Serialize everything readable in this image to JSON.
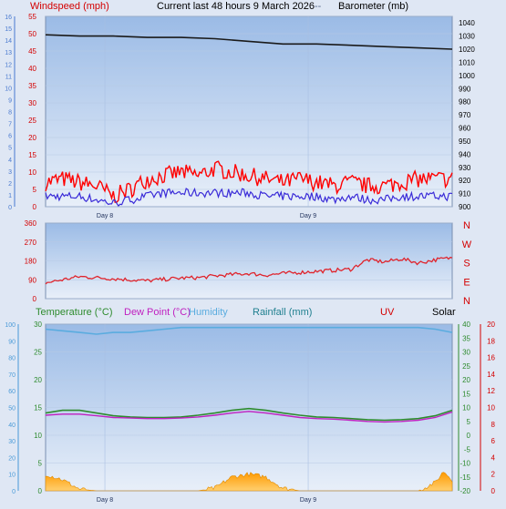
{
  "header": {
    "left_label": "Windspeed (mph)",
    "center_label": "Current last 48 hours 9 March 2026",
    "barometer_label": "Barometer (mb)",
    "left_label_color": "#d40000",
    "barometer_label_color": "#000000"
  },
  "days": [
    "Day 8",
    "Day 9"
  ],
  "panel3_labels": {
    "temperature": "Temperature (°C)",
    "dew_point": "Dew Point (°C)",
    "humidity": "Humidity",
    "rainfall": "Rainfall (mm)",
    "uv": "UV",
    "solar": "Solar"
  },
  "colors": {
    "plot_bg_top": "#9bbbe6",
    "plot_bg_bottom": "#e6eefa",
    "wind_gust": "#ff0000",
    "wind_avg": "#3a2bd8",
    "barometer": "#1a1a1a",
    "direction": "#e0242c",
    "temperature": "#2e8b2e",
    "dew_point": "#c020c0",
    "humidity": "#5aacdf",
    "rainfall": "#1f7f8f",
    "uv": "#e00000",
    "solar": "#f0a000"
  },
  "chart_data": [
    {
      "type": "line",
      "panel": "wind_barometer",
      "x_unit": "hours",
      "x_range": [
        0,
        48
      ],
      "day_ticks": [
        {
          "label": "Day 8",
          "hour": 7
        },
        {
          "label": "Day 9",
          "hour": 31
        }
      ],
      "left_axis": {
        "label": "Windspeed (mph)",
        "range": [
          0,
          55
        ],
        "ticks": [
          0,
          5,
          10,
          15,
          20,
          25,
          30,
          35,
          40,
          45,
          50,
          55
        ]
      },
      "secondary_axis_ticks": [
        0,
        1,
        2,
        3,
        4,
        5,
        6,
        7,
        8,
        9,
        10,
        11,
        12,
        13,
        14,
        15,
        16
      ],
      "right_axis": {
        "label": "Barometer (mb)",
        "range": [
          900,
          1045
        ],
        "ticks": [
          900,
          910,
          920,
          930,
          940,
          950,
          960,
          970,
          980,
          990,
          1000,
          1010,
          1020,
          1030,
          1040
        ]
      },
      "series": [
        {
          "name": "Barometer",
          "axis": "right",
          "x": [
            0,
            4,
            8,
            12,
            16,
            20,
            24,
            28,
            32,
            36,
            40,
            44,
            48
          ],
          "y": [
            1031,
            1030,
            1030,
            1029,
            1029,
            1028,
            1026,
            1024,
            1024,
            1023,
            1022,
            1021,
            1020
          ]
        },
        {
          "axis": "left",
          "role": "gust",
          "x": [
            0,
            2,
            4,
            6,
            8,
            10,
            12,
            14,
            16,
            18,
            20,
            22,
            24,
            26,
            28,
            30,
            32,
            34,
            36,
            38,
            40,
            42,
            44,
            46,
            48
          ],
          "y": [
            7,
            8,
            7,
            6,
            3,
            5,
            8,
            9,
            10,
            9,
            11,
            10,
            9,
            8,
            7,
            8,
            7,
            6,
            7,
            6,
            6,
            7,
            8,
            8,
            8
          ]
        },
        {
          "axis": "left",
          "role": "average",
          "x": [
            0,
            2,
            4,
            6,
            8,
            10,
            12,
            14,
            16,
            18,
            20,
            22,
            24,
            26,
            28,
            30,
            32,
            34,
            36,
            38,
            40,
            42,
            44,
            46,
            48
          ],
          "y": [
            3,
            3,
            3,
            2,
            1,
            2,
            3,
            4,
            4,
            4,
            4,
            4,
            4,
            3,
            3,
            3,
            3,
            2,
            3,
            2,
            2,
            3,
            3,
            3,
            3
          ]
        }
      ]
    },
    {
      "type": "line",
      "panel": "wind_direction",
      "x_range": [
        0,
        48
      ],
      "left_axis": {
        "range": [
          0,
          360
        ],
        "ticks": [
          0,
          90,
          180,
          270,
          360
        ]
      },
      "right_labels": [
        "N",
        "W",
        "S",
        "E",
        "N"
      ],
      "series": [
        {
          "axis": "left",
          "x": [
            0,
            2,
            4,
            6,
            8,
            10,
            12,
            14,
            16,
            18,
            20,
            22,
            24,
            26,
            28,
            30,
            32,
            34,
            36,
            38,
            40,
            42,
            44,
            46,
            48
          ],
          "y": [
            75,
            90,
            105,
            100,
            95,
            90,
            85,
            92,
            98,
            100,
            108,
            115,
            120,
            112,
            120,
            125,
            130,
            135,
            140,
            185,
            175,
            190,
            170,
            185,
            195
          ]
        }
      ]
    },
    {
      "type": "line",
      "panel": "temperature_humidity_rain",
      "x_range": [
        0,
        48
      ],
      "left_axis": {
        "label": "Temperature (°C)",
        "range": [
          0,
          30
        ],
        "ticks": [
          0,
          5,
          10,
          15,
          20,
          25,
          30
        ]
      },
      "humidity_axis": {
        "label": "Humidity",
        "range": [
          0,
          100
        ],
        "ticks": [
          0,
          10,
          20,
          30,
          40,
          50,
          60,
          70,
          80,
          90,
          100
        ]
      },
      "right_axis_1": {
        "range": [
          -20,
          40
        ],
        "ticks": [
          -20,
          -15,
          -10,
          -5,
          0,
          5,
          10,
          15,
          20,
          25,
          30,
          35,
          40
        ]
      },
      "right_axis_2": {
        "label": "UV",
        "range": [
          0,
          20
        ],
        "ticks": [
          0,
          2,
          4,
          6,
          8,
          10,
          12,
          14,
          16,
          18,
          20
        ]
      },
      "series": [
        {
          "name": "Humidity",
          "axis": "humidity",
          "x": [
            0,
            2,
            4,
            6,
            8,
            10,
            12,
            14,
            16,
            18,
            20,
            22,
            24,
            26,
            28,
            30,
            32,
            34,
            36,
            38,
            40,
            42,
            44,
            46,
            48
          ],
          "y": [
            97,
            96,
            95,
            94,
            95,
            95,
            96,
            97,
            98,
            98,
            98,
            98,
            98,
            98,
            98,
            98,
            98,
            98,
            98,
            98,
            98,
            98,
            98,
            97,
            95
          ]
        },
        {
          "name": "Temperature (°C)",
          "axis": "left",
          "x": [
            0,
            2,
            4,
            6,
            8,
            10,
            12,
            14,
            16,
            18,
            20,
            22,
            24,
            26,
            28,
            30,
            32,
            34,
            36,
            38,
            40,
            42,
            44,
            46,
            48
          ],
          "y": [
            14,
            14.5,
            14.5,
            14,
            13.5,
            13.3,
            13.2,
            13.2,
            13.3,
            13.6,
            14,
            14.5,
            14.8,
            14.5,
            14,
            13.6,
            13.3,
            13.2,
            13,
            12.8,
            12.7,
            12.8,
            13,
            13.5,
            14.5
          ]
        },
        {
          "name": "Dew Point (°C)",
          "axis": "left",
          "x": [
            0,
            2,
            4,
            6,
            8,
            10,
            12,
            14,
            16,
            18,
            20,
            22,
            24,
            26,
            28,
            30,
            32,
            34,
            36,
            38,
            40,
            42,
            44,
            46,
            48
          ],
          "y": [
            13.6,
            13.8,
            13.8,
            13.5,
            13.2,
            13.1,
            13,
            13,
            13.1,
            13.3,
            13.6,
            14,
            14.3,
            14,
            13.6,
            13.2,
            13,
            12.9,
            12.7,
            12.5,
            12.4,
            12.5,
            12.7,
            13.2,
            14.2
          ]
        },
        {
          "name": "Solar",
          "axis": "left",
          "type": "area",
          "x": [
            0,
            2,
            4,
            6,
            8,
            10,
            12,
            14,
            16,
            18,
            20,
            22,
            24,
            26,
            28,
            30,
            32,
            34,
            36,
            38,
            40,
            42,
            44,
            46,
            47,
            48
          ],
          "y": [
            3,
            2,
            0.3,
            0,
            0,
            0,
            0,
            0,
            0,
            0,
            0.5,
            2.5,
            3,
            2.5,
            0.5,
            0,
            0,
            0,
            0,
            0,
            0,
            0,
            0,
            1.5,
            3.5,
            2
          ]
        }
      ]
    }
  ]
}
